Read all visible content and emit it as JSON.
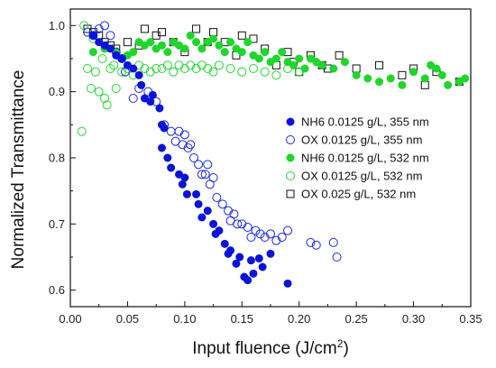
{
  "chart_data": {
    "type": "scatter",
    "title": "",
    "xlabel": "Input fluence (J/cm",
    "xlabel_sup": "2",
    "xlabel_end": ")",
    "ylabel": "Normalized Transmittance",
    "xlim": [
      0.0,
      0.35
    ],
    "ylim": [
      0.575,
      1.025
    ],
    "x_ticks": [
      "0.00",
      "0.05",
      "0.10",
      "0.15",
      "0.20",
      "0.25",
      "0.30",
      "0.35"
    ],
    "y_ticks": [
      "0.6",
      "0.7",
      "0.8",
      "0.9",
      "1.0"
    ],
    "x_tick_values": [
      0.0,
      0.05,
      0.1,
      0.15,
      0.2,
      0.25,
      0.3,
      0.35
    ],
    "y_tick_values": [
      0.6,
      0.7,
      0.8,
      0.9,
      1.0
    ],
    "grid": false,
    "legend_position": "right",
    "series": [
      {
        "name": "NH6 0.0125 g/L, 355 nm",
        "marker": "circle-filled",
        "color": "#0a14d8",
        "points": [
          [
            0.02,
            0.985
          ],
          [
            0.025,
            0.975
          ],
          [
            0.03,
            0.97
          ],
          [
            0.035,
            0.965
          ],
          [
            0.04,
            0.955
          ],
          [
            0.045,
            0.95
          ],
          [
            0.05,
            0.94
          ],
          [
            0.055,
            0.935
          ],
          [
            0.06,
            0.925
          ],
          [
            0.062,
            0.91
          ],
          [
            0.065,
            0.89
          ],
          [
            0.07,
            0.885
          ],
          [
            0.072,
            0.895
          ],
          [
            0.078,
            0.875
          ],
          [
            0.08,
            0.85
          ],
          [
            0.082,
            0.845
          ],
          [
            0.08,
            0.815
          ],
          [
            0.085,
            0.8
          ],
          [
            0.088,
            0.785
          ],
          [
            0.095,
            0.775
          ],
          [
            0.098,
            0.76
          ],
          [
            0.1,
            0.77
          ],
          [
            0.102,
            0.745
          ],
          [
            0.11,
            0.745
          ],
          [
            0.112,
            0.73
          ],
          [
            0.115,
            0.71
          ],
          [
            0.12,
            0.72
          ],
          [
            0.125,
            0.7
          ],
          [
            0.127,
            0.685
          ],
          [
            0.13,
            0.69
          ],
          [
            0.135,
            0.67
          ],
          [
            0.138,
            0.655
          ],
          [
            0.14,
            0.66
          ],
          [
            0.145,
            0.64
          ],
          [
            0.148,
            0.65
          ],
          [
            0.152,
            0.62
          ],
          [
            0.155,
            0.615
          ],
          [
            0.158,
            0.645
          ],
          [
            0.16,
            0.625
          ],
          [
            0.165,
            0.648
          ],
          [
            0.168,
            0.635
          ],
          [
            0.175,
            0.655
          ],
          [
            0.19,
            0.61
          ]
        ]
      },
      {
        "name": "OX 0.0125 g/L, 355 nm",
        "marker": "circle-open",
        "color": "#1a2adc",
        "points": [
          [
            0.015,
            0.99
          ],
          [
            0.02,
            0.985
          ],
          [
            0.025,
            0.995
          ],
          [
            0.03,
            1.0
          ],
          [
            0.035,
            0.985
          ],
          [
            0.04,
            0.96
          ],
          [
            0.045,
            0.95
          ],
          [
            0.048,
            0.93
          ],
          [
            0.055,
            0.89
          ],
          [
            0.06,
            0.905
          ],
          [
            0.068,
            0.9
          ],
          [
            0.075,
            0.885
          ],
          [
            0.082,
            0.85
          ],
          [
            0.088,
            0.84
          ],
          [
            0.092,
            0.825
          ],
          [
            0.095,
            0.84
          ],
          [
            0.098,
            0.82
          ],
          [
            0.1,
            0.835
          ],
          [
            0.103,
            0.815
          ],
          [
            0.105,
            0.82
          ],
          [
            0.108,
            0.8
          ],
          [
            0.112,
            0.79
          ],
          [
            0.115,
            0.775
          ],
          [
            0.118,
            0.775
          ],
          [
            0.12,
            0.79
          ],
          [
            0.122,
            0.76
          ],
          [
            0.125,
            0.77
          ],
          [
            0.128,
            0.74
          ],
          [
            0.133,
            0.73
          ],
          [
            0.138,
            0.72
          ],
          [
            0.14,
            0.705
          ],
          [
            0.143,
            0.715
          ],
          [
            0.146,
            0.7
          ],
          [
            0.15,
            0.7
          ],
          [
            0.155,
            0.695
          ],
          [
            0.158,
            0.68
          ],
          [
            0.162,
            0.69
          ],
          [
            0.166,
            0.685
          ],
          [
            0.17,
            0.68
          ],
          [
            0.175,
            0.685
          ],
          [
            0.18,
            0.675
          ],
          [
            0.185,
            0.68
          ],
          [
            0.19,
            0.69
          ],
          [
            0.21,
            0.672
          ],
          [
            0.215,
            0.668
          ],
          [
            0.23,
            0.672
          ],
          [
            0.233,
            0.65
          ]
        ]
      },
      {
        "name": "NH6 0.0125 g/L, 532 nm",
        "marker": "circle-filled",
        "color": "#1fd62b",
        "points": [
          [
            0.02,
            0.96
          ],
          [
            0.03,
            0.965
          ],
          [
            0.04,
            0.96
          ],
          [
            0.05,
            0.955
          ],
          [
            0.055,
            0.96
          ],
          [
            0.06,
            0.975
          ],
          [
            0.065,
            0.97
          ],
          [
            0.07,
            0.975
          ],
          [
            0.075,
            0.965
          ],
          [
            0.08,
            0.97
          ],
          [
            0.085,
            0.96
          ],
          [
            0.09,
            0.975
          ],
          [
            0.095,
            0.97
          ],
          [
            0.1,
            0.965
          ],
          [
            0.105,
            0.985
          ],
          [
            0.11,
            0.975
          ],
          [
            0.115,
            0.965
          ],
          [
            0.12,
            0.975
          ],
          [
            0.125,
            0.98
          ],
          [
            0.13,
            0.97
          ],
          [
            0.135,
            0.96
          ],
          [
            0.14,
            0.975
          ],
          [
            0.145,
            0.965
          ],
          [
            0.15,
            0.96
          ],
          [
            0.155,
            0.975
          ],
          [
            0.16,
            0.955
          ],
          [
            0.165,
            0.95
          ],
          [
            0.17,
            0.96
          ],
          [
            0.175,
            0.945
          ],
          [
            0.18,
            0.95
          ],
          [
            0.185,
            0.96
          ],
          [
            0.19,
            0.945
          ],
          [
            0.195,
            0.94
          ],
          [
            0.2,
            0.95
          ],
          [
            0.205,
            0.935
          ],
          [
            0.21,
            0.95
          ],
          [
            0.215,
            0.945
          ],
          [
            0.22,
            0.94
          ],
          [
            0.23,
            0.935
          ],
          [
            0.24,
            0.945
          ],
          [
            0.25,
            0.925
          ],
          [
            0.26,
            0.92
          ],
          [
            0.27,
            0.915
          ],
          [
            0.28,
            0.92
          ],
          [
            0.29,
            0.91
          ],
          [
            0.3,
            0.93
          ],
          [
            0.31,
            0.92
          ],
          [
            0.315,
            0.94
          ],
          [
            0.32,
            0.935
          ],
          [
            0.325,
            0.925
          ],
          [
            0.33,
            0.91
          ],
          [
            0.34,
            0.915
          ],
          [
            0.345,
            0.92
          ]
        ]
      },
      {
        "name": "OX 0.0125 g/L, 532 nm",
        "marker": "circle-open",
        "color": "#27d636",
        "points": [
          [
            0.01,
            0.84
          ],
          [
            0.012,
            1.0
          ],
          [
            0.015,
            0.935
          ],
          [
            0.018,
            0.905
          ],
          [
            0.02,
            0.98
          ],
          [
            0.022,
            0.93
          ],
          [
            0.025,
            0.9
          ],
          [
            0.028,
            0.95
          ],
          [
            0.03,
            0.89
          ],
          [
            0.032,
            0.88
          ],
          [
            0.035,
            0.935
          ],
          [
            0.038,
            0.94
          ],
          [
            0.04,
            0.905
          ],
          [
            0.045,
            0.93
          ],
          [
            0.05,
            0.935
          ],
          [
            0.055,
            0.925
          ],
          [
            0.06,
            0.94
          ],
          [
            0.065,
            0.935
          ],
          [
            0.07,
            0.93
          ],
          [
            0.075,
            0.935
          ],
          [
            0.08,
            0.935
          ],
          [
            0.085,
            0.94
          ],
          [
            0.09,
            0.93
          ],
          [
            0.095,
            0.94
          ],
          [
            0.1,
            0.935
          ],
          [
            0.105,
            0.94
          ],
          [
            0.11,
            0.935
          ],
          [
            0.115,
            0.94
          ],
          [
            0.12,
            0.935
          ],
          [
            0.125,
            0.93
          ],
          [
            0.13,
            0.94
          ],
          [
            0.14,
            0.935
          ],
          [
            0.15,
            0.93
          ],
          [
            0.16,
            0.935
          ],
          [
            0.17,
            0.93
          ],
          [
            0.18,
            0.925
          ],
          [
            0.19,
            0.935
          ],
          [
            0.2,
            0.93
          ]
        ]
      },
      {
        "name": "OX 0.025 g/L, 532 nm",
        "marker": "square-open",
        "color": "#111111",
        "points": [
          [
            0.015,
            0.995
          ],
          [
            0.02,
            0.99
          ],
          [
            0.025,
            0.985
          ],
          [
            0.03,
            0.975
          ],
          [
            0.035,
            0.97
          ],
          [
            0.04,
            0.965
          ],
          [
            0.05,
            0.975
          ],
          [
            0.06,
            0.97
          ],
          [
            0.065,
            0.995
          ],
          [
            0.075,
            0.985
          ],
          [
            0.08,
            0.99
          ],
          [
            0.09,
            0.975
          ],
          [
            0.1,
            0.96
          ],
          [
            0.11,
            0.995
          ],
          [
            0.12,
            0.975
          ],
          [
            0.125,
            0.99
          ],
          [
            0.135,
            0.975
          ],
          [
            0.145,
            0.955
          ],
          [
            0.15,
            0.985
          ],
          [
            0.16,
            0.98
          ],
          [
            0.17,
            0.965
          ],
          [
            0.18,
            0.94
          ],
          [
            0.19,
            0.96
          ],
          [
            0.195,
            0.945
          ],
          [
            0.2,
            0.93
          ],
          [
            0.21,
            0.955
          ],
          [
            0.22,
            0.94
          ],
          [
            0.225,
            0.935
          ],
          [
            0.235,
            0.955
          ],
          [
            0.25,
            0.935
          ],
          [
            0.27,
            0.94
          ],
          [
            0.29,
            0.925
          ],
          [
            0.3,
            0.935
          ],
          [
            0.31,
            0.91
          ],
          [
            0.32,
            0.93
          ],
          [
            0.34,
            0.915
          ]
        ]
      }
    ]
  }
}
